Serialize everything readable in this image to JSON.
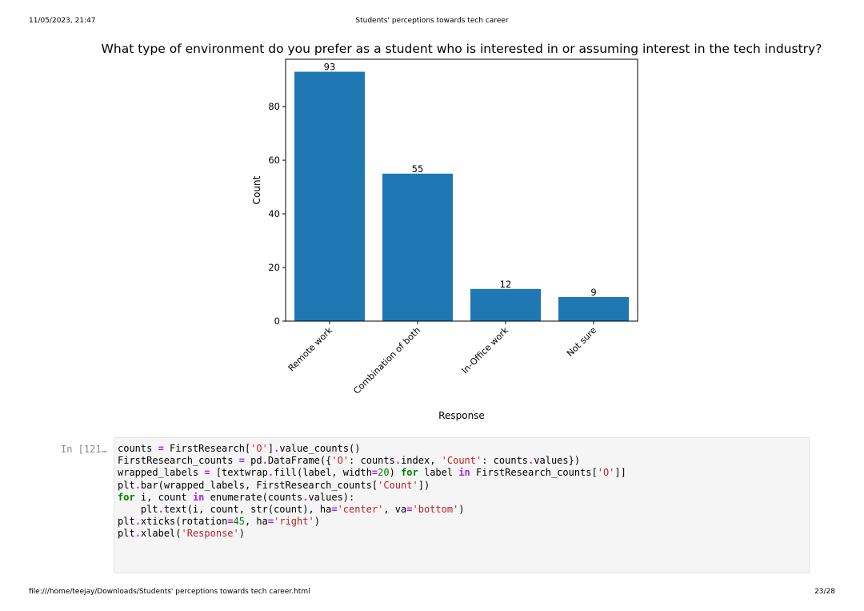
{
  "header": {
    "datetime": "11/05/2023, 21:47",
    "doc_title": "Students' perceptions towards tech career"
  },
  "footer": {
    "path": "file:///home/teejay/Downloads/Students' perceptions towards tech career.html",
    "page": "23/28"
  },
  "chart_data": {
    "type": "bar",
    "title": "What type of environment do you prefer as a student who is interested in or assuming interest in the tech industry?",
    "categories": [
      "Remote work",
      "Combination of both",
      "In-Office work",
      "Not sure"
    ],
    "values": [
      93,
      55,
      12,
      9
    ],
    "xlabel": "Response",
    "ylabel": "Count",
    "ylim": [
      0,
      97.65
    ],
    "yticks": [
      0,
      20,
      40,
      60,
      80
    ],
    "bar_color": "#1f77b4",
    "grid": false,
    "legend": "none"
  },
  "cell": {
    "prompt": "In [121…",
    "language": "python"
  }
}
